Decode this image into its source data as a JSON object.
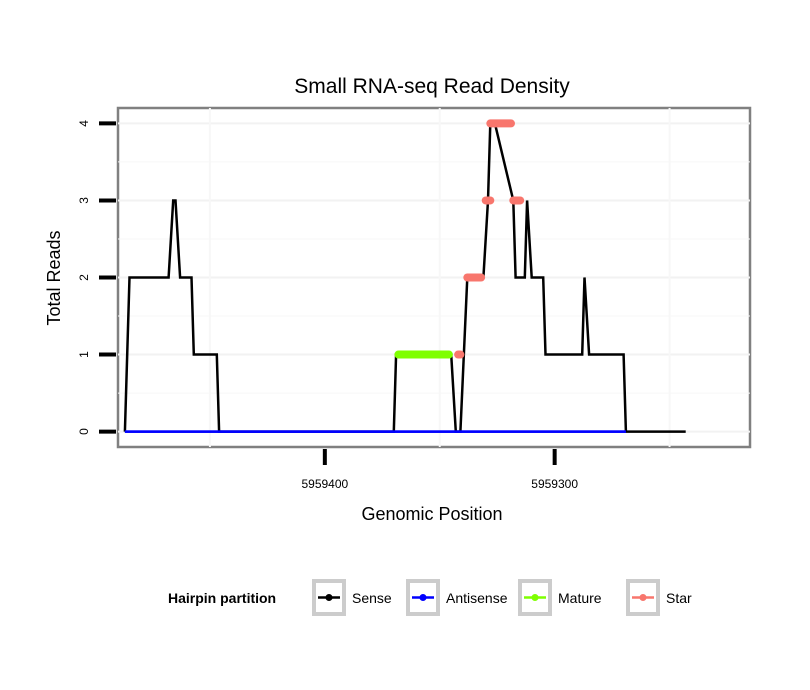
{
  "chart_data": {
    "type": "line",
    "title": "Small RNA-seq Read Density",
    "xlabel": "Genomic Position",
    "ylabel": "Total Reads",
    "x_reversed": true,
    "xlim": [
      5959490,
      5959215
    ],
    "ylim": [
      -0.2,
      4.2
    ],
    "x_ticks": [
      5959400,
      5959300
    ],
    "x_tick_labels": [
      "5959400",
      "5959300"
    ],
    "y_ticks": [
      0,
      1,
      2,
      3,
      4
    ],
    "y_tick_labels": [
      "0",
      "1",
      "2",
      "3",
      "4"
    ],
    "grid": true,
    "legend": {
      "title": "Hairpin partition",
      "position": "bottom",
      "entries": [
        {
          "label": "Sense",
          "color": "#000000"
        },
        {
          "label": "Antisense",
          "color": "#0000ff"
        },
        {
          "label": "Mature",
          "color": "#7fff00"
        },
        {
          "label": "Star",
          "color": "#f8766d"
        }
      ]
    },
    "series": [
      {
        "name": "Sense",
        "color": "#000000",
        "x": [
          5959487,
          5959485,
          5959468,
          5959466,
          5959465,
          5959463,
          5959458,
          5959457,
          5959447,
          5959446,
          5959370,
          5959369,
          5959345,
          5959343,
          5959341,
          5959338,
          5959331,
          5959329,
          5959328,
          5959326,
          5959318,
          5959317,
          5959313,
          5959312,
          5959310,
          5959305,
          5959304,
          5959288,
          5959287,
          5959285,
          5959270,
          5959269,
          5959243
        ],
        "y": [
          0,
          2,
          2,
          3,
          3,
          2,
          2,
          1,
          1,
          0,
          0,
          1,
          1,
          0,
          0,
          2,
          2,
          3,
          4,
          4,
          3,
          2,
          2,
          3,
          2,
          2,
          1,
          1,
          2,
          1,
          1,
          0,
          0
        ]
      },
      {
        "name": "Antisense",
        "color": "#0000ff",
        "x": [
          5959487,
          5959269
        ],
        "y": [
          0,
          0
        ]
      },
      {
        "name": "Mature",
        "color": "#7fff00",
        "segments": [
          {
            "x": [
              5959368,
              5959346
            ],
            "y": 1
          }
        ]
      },
      {
        "name": "Star",
        "color": "#f8766d",
        "segments": [
          {
            "x": [
              5959342,
              5959341
            ],
            "y": 1
          },
          {
            "x": [
              5959338,
              5959332
            ],
            "y": 2
          },
          {
            "x": [
              5959330,
              5959328
            ],
            "y": 3
          },
          {
            "x": [
              5959328,
              5959319
            ],
            "y": 4
          },
          {
            "x": [
              5959318,
              5959315
            ],
            "y": 3
          }
        ]
      }
    ]
  }
}
